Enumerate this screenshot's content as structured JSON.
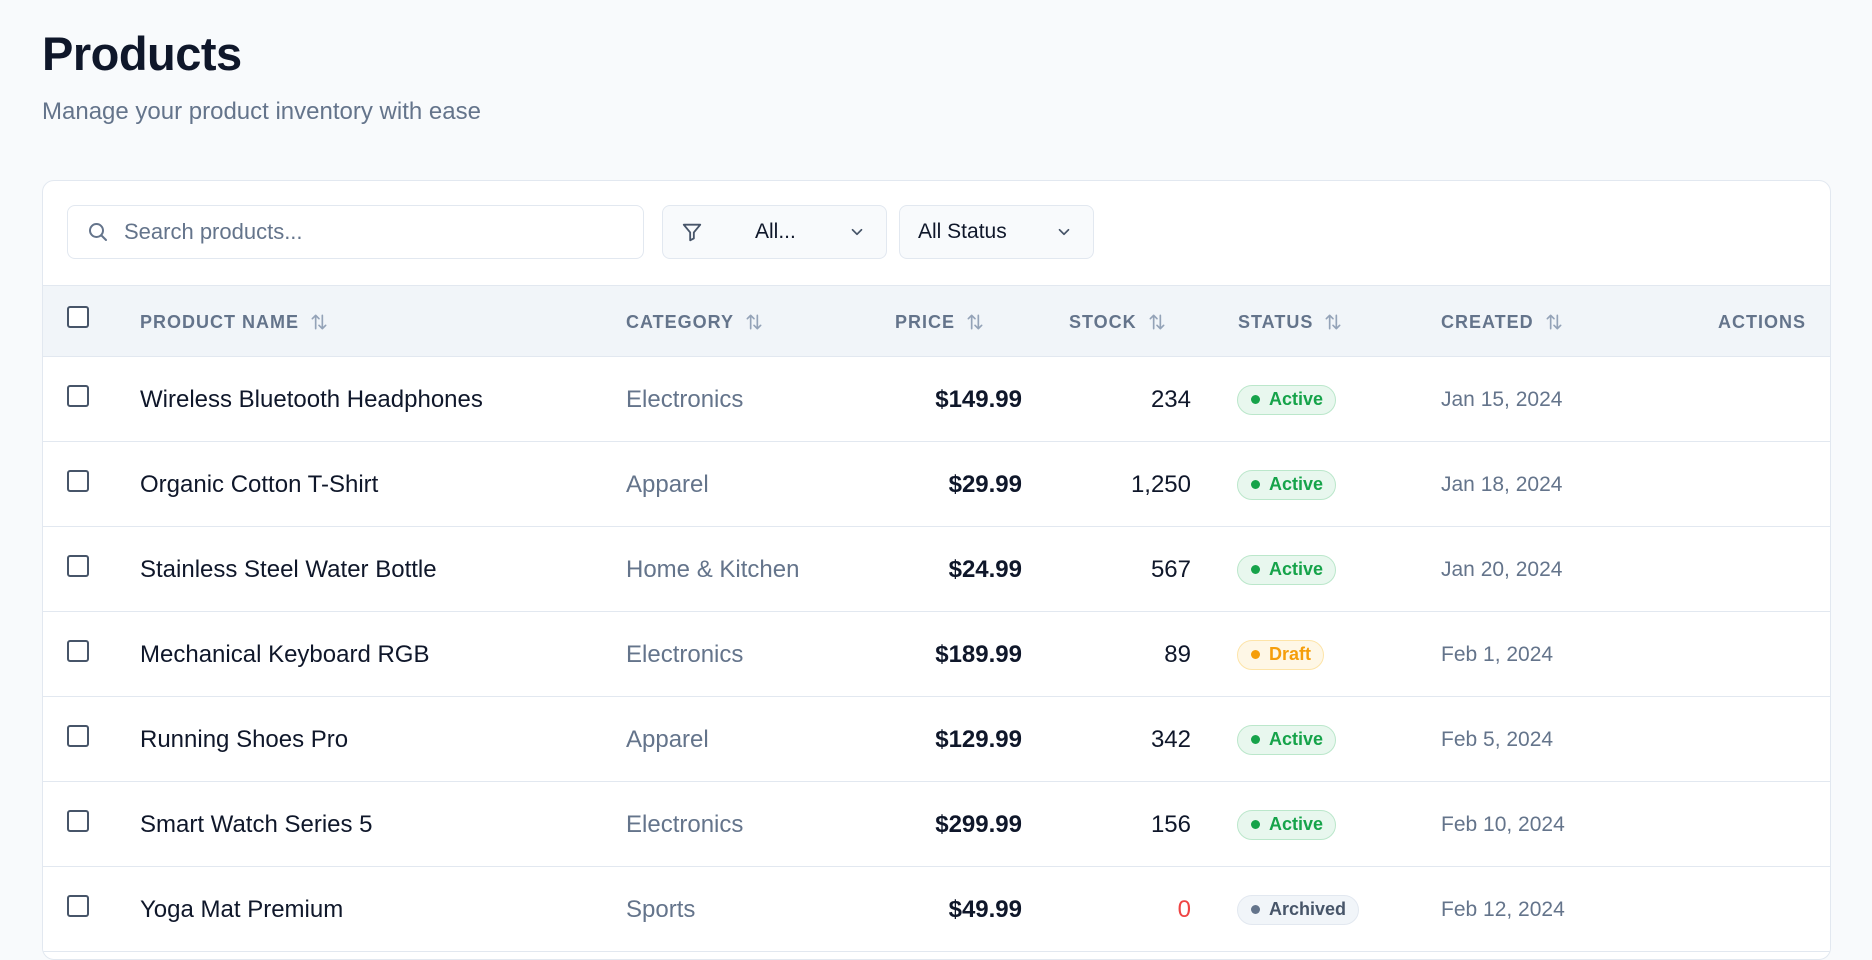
{
  "header": {
    "title": "Products",
    "subtitle": "Manage your product inventory with ease"
  },
  "toolbar": {
    "search_placeholder": "Search products...",
    "search_value": "",
    "category_filter": {
      "selected": "All...",
      "icon": "filter-icon"
    },
    "status_filter": {
      "selected": "All Status"
    }
  },
  "table": {
    "columns": [
      "PRODUCT NAME",
      "CATEGORY",
      "PRICE",
      "STOCK",
      "STATUS",
      "CREATED",
      "ACTIONS"
    ],
    "rows": [
      {
        "name": "Wireless Bluetooth Headphones",
        "category": "Electronics",
        "price": "$149.99",
        "stock": "234",
        "status": "Active",
        "created": "Jan 15, 2024"
      },
      {
        "name": "Organic Cotton T-Shirt",
        "category": "Apparel",
        "price": "$29.99",
        "stock": "1,250",
        "status": "Active",
        "created": "Jan 18, 2024"
      },
      {
        "name": "Stainless Steel Water Bottle",
        "category": "Home & Kitchen",
        "price": "$24.99",
        "stock": "567",
        "status": "Active",
        "created": "Jan 20, 2024"
      },
      {
        "name": "Mechanical Keyboard RGB",
        "category": "Electronics",
        "price": "$189.99",
        "stock": "89",
        "status": "Draft",
        "created": "Feb 1, 2024"
      },
      {
        "name": "Running Shoes Pro",
        "category": "Apparel",
        "price": "$129.99",
        "stock": "342",
        "status": "Active",
        "created": "Feb 5, 2024"
      },
      {
        "name": "Smart Watch Series 5",
        "category": "Electronics",
        "price": "$299.99",
        "stock": "156",
        "status": "Active",
        "created": "Feb 10, 2024"
      },
      {
        "name": "Yoga Mat Premium",
        "category": "Sports",
        "price": "$49.99",
        "stock": "0",
        "status": "Archived",
        "created": "Feb 12, 2024"
      }
    ]
  },
  "colors": {
    "active": "#16a34a",
    "draft": "#f59e0b",
    "archived": "#64748b",
    "out_of_stock": "#ef4444"
  }
}
